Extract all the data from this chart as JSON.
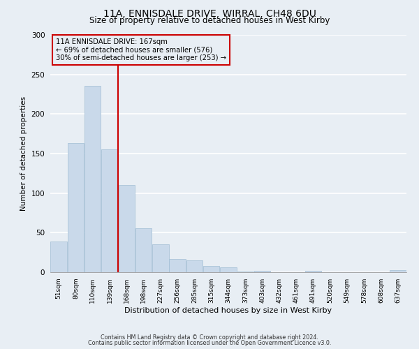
{
  "title": "11A, ENNISDALE DRIVE, WIRRAL, CH48 6DU",
  "subtitle": "Size of property relative to detached houses in West Kirby",
  "xlabel": "Distribution of detached houses by size in West Kirby",
  "ylabel": "Number of detached properties",
  "bar_color": "#c9d9ea",
  "bar_edge_color": "#a0bdd4",
  "background_color": "#e8eef4",
  "plot_bg_color": "#e8eef4",
  "grid_color": "#ffffff",
  "categories": [
    "51sqm",
    "80sqm",
    "110sqm",
    "139sqm",
    "168sqm",
    "198sqm",
    "227sqm",
    "256sqm",
    "285sqm",
    "315sqm",
    "344sqm",
    "373sqm",
    "403sqm",
    "432sqm",
    "461sqm",
    "491sqm",
    "520sqm",
    "549sqm",
    "578sqm",
    "608sqm",
    "637sqm"
  ],
  "values": [
    39,
    163,
    236,
    155,
    110,
    56,
    35,
    17,
    15,
    8,
    6,
    1,
    2,
    0,
    0,
    2,
    0,
    0,
    0,
    0,
    3
  ],
  "ylim": [
    0,
    300
  ],
  "yticks": [
    0,
    50,
    100,
    150,
    200,
    250,
    300
  ],
  "vline_color": "#cc0000",
  "vline_index": 4,
  "annotation_title": "11A ENNISDALE DRIVE: 167sqm",
  "annotation_line1": "← 69% of detached houses are smaller (576)",
  "annotation_line2": "30% of semi-detached houses are larger (253) →",
  "annotation_box_edge": "#cc0000",
  "footer1": "Contains HM Land Registry data © Crown copyright and database right 2024.",
  "footer2": "Contains public sector information licensed under the Open Government Licence v3.0."
}
